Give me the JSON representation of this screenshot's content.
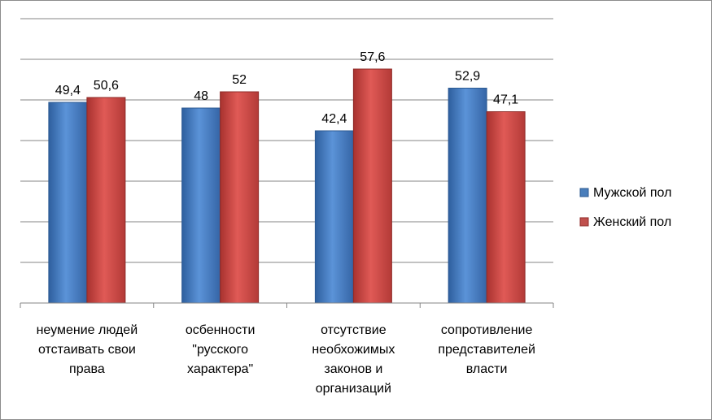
{
  "chart_data": {
    "type": "bar",
    "categories": [
      [
        "неумение людей",
        "отстаивать свои",
        "права"
      ],
      [
        "осбенности",
        "\"русского",
        "характера\""
      ],
      [
        "отсутствие",
        "необхожимых",
        "законов и",
        "организаций"
      ],
      [
        "сопротивление",
        "представителей",
        "власти"
      ]
    ],
    "series": [
      {
        "name": "Мужской пол",
        "values": [
          49.4,
          48,
          42.4,
          52.9
        ],
        "labels": [
          "49,4",
          "48",
          "42,4",
          "52,9"
        ],
        "color": "#4a7ebb"
      },
      {
        "name": "Женский пол",
        "values": [
          50.6,
          52,
          57.6,
          47.1
        ],
        "labels": [
          "50,6",
          "52",
          "57,6",
          "47,1"
        ],
        "color": "#c0504d"
      }
    ],
    "ylim": [
      0,
      70
    ],
    "gridlines": true,
    "legend": "right"
  }
}
